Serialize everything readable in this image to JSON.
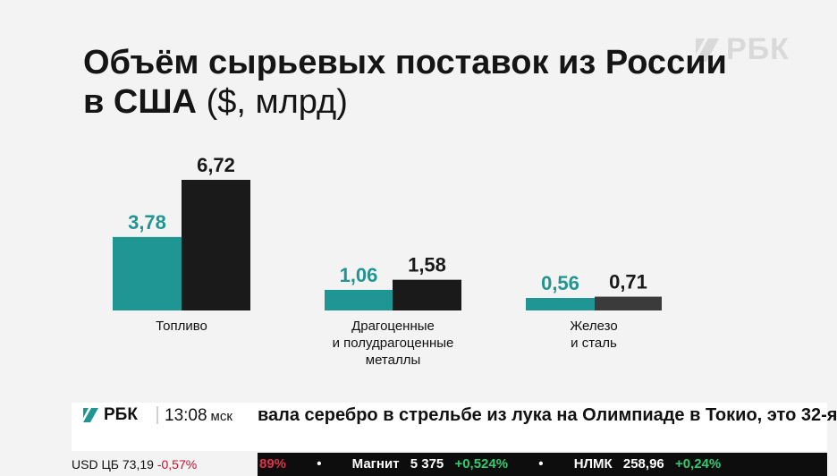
{
  "watermark": {
    "text": "РБК"
  },
  "title": {
    "line1": "Объём сырьевых поставок из России",
    "line2_bold": "в США",
    "line2_unit": "($, млрд)"
  },
  "colors": {
    "teal": "#1f9693",
    "dark": "#1a1a1a",
    "gray": "#3b3b3b",
    "accent_green": "#2ecc71",
    "accent_red": "#c8102e"
  },
  "chart_data": {
    "type": "bar",
    "title": "Объём сырьевых поставок из России в США ($, млрд)",
    "categories": [
      "Топливо",
      "Драгоценные\nи полудрагоценные\nметаллы",
      "Железо\nи сталь"
    ],
    "series": [
      {
        "values": [
          3.78,
          1.06,
          0.56
        ],
        "labels": [
          "3,78",
          "1,06",
          "0,56"
        ]
      },
      {
        "values": [
          6.72,
          1.58,
          0.71
        ],
        "labels": [
          "6,72",
          "1,58",
          "0,71"
        ]
      }
    ],
    "ylim": [
      0,
      6.72
    ],
    "grid": false,
    "legend": "none"
  },
  "ticker": {
    "brand": "РБК",
    "time": "13:08",
    "timezone": "мск",
    "headline": "вала серебро в стрельбе из лука на Олимпиаде в Токио, это 32-я",
    "usd_label": "USD ЦБ",
    "usd_value": "73,19",
    "usd_change": "-0,57%",
    "quotes": [
      {
        "name": "",
        "value": "",
        "change": "89%",
        "dir": "down"
      },
      {
        "name": "Магнит",
        "value": "5 375",
        "change": "+0,524%",
        "dir": "up"
      },
      {
        "name": "НЛМК",
        "value": "258,96",
        "change": "+0,24%",
        "dir": "up"
      }
    ]
  }
}
